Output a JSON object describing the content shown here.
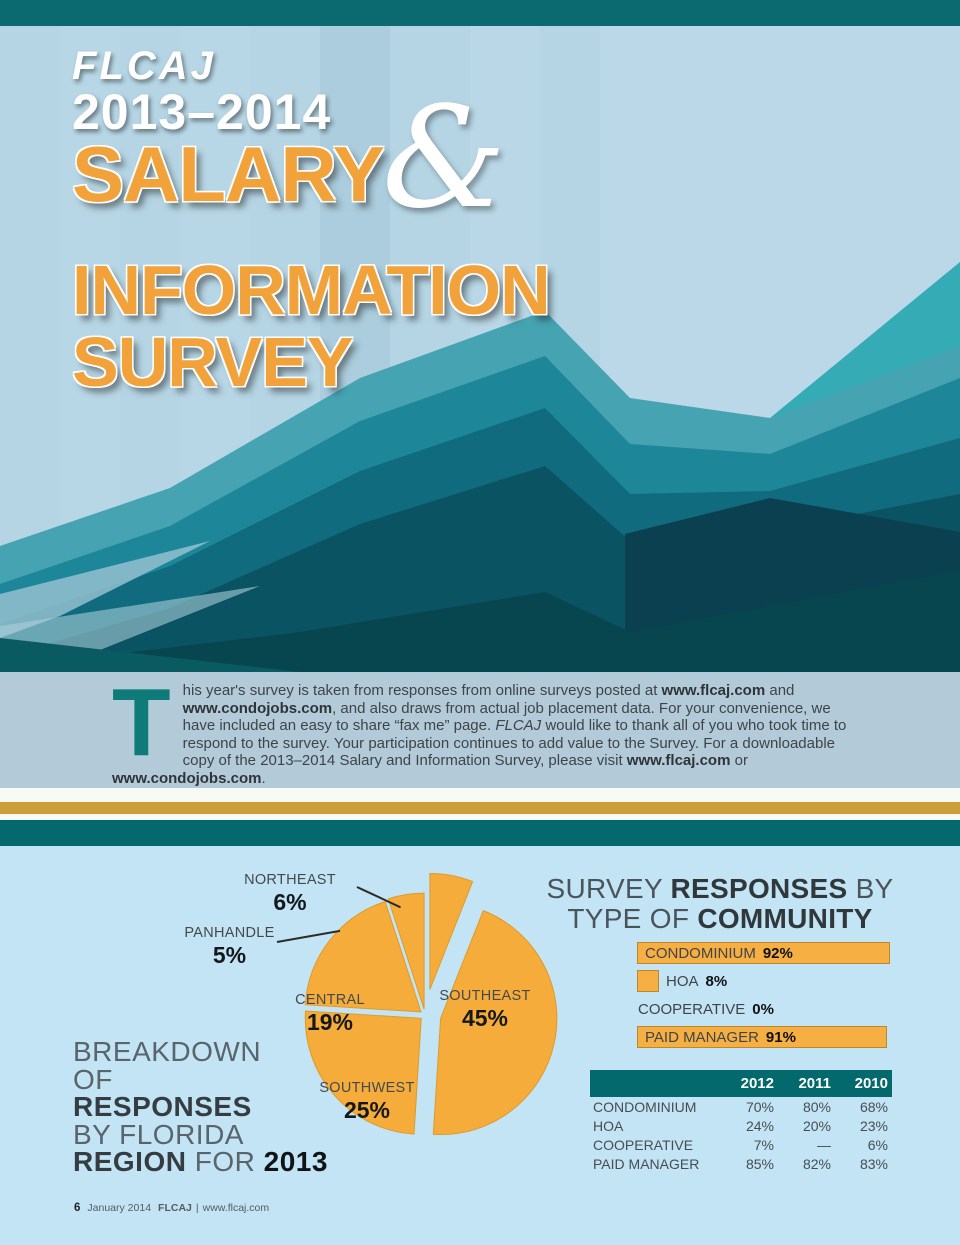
{
  "colors": {
    "accent_gold": "#F5AF43",
    "teal_dark": "#03696C",
    "hero_orange": "#F2A23A",
    "light_blue": "#C2E4F4"
  },
  "hero": {
    "brand": "FLCAJ",
    "years": "2013–2014",
    "word_salary": "SALARY",
    "ampersand": "&",
    "word_information": "INFORMATION",
    "word_survey": "SURVEY"
  },
  "intro": {
    "dropcap": "T",
    "segments": [
      {
        "t": "his year's survey is taken from responses from online surveys posted at ",
        "s": "n"
      },
      {
        "t": "www.flcaj.com",
        "s": "b"
      },
      {
        "t": " and ",
        "s": "n"
      },
      {
        "t": "www.condojobs.com",
        "s": "b"
      },
      {
        "t": ", and also draws from actual job placement data. For your convenience, we have included an easy to share “fax me” page. ",
        "s": "n"
      },
      {
        "t": "FLCAJ",
        "s": "i"
      },
      {
        "t": " would like to thank all of you who took time to respond to the survey. Your participation continues to add value to the Survey. For a downloadable copy of the 2013–2014 Salary and Information Survey, please visit ",
        "s": "n"
      },
      {
        "t": "www.flcaj.com",
        "s": "b"
      },
      {
        "t": " or ",
        "s": "n"
      },
      {
        "t": "www.condojobs.com",
        "s": "b"
      },
      {
        "t": ".",
        "s": "n"
      }
    ]
  },
  "region_heading": {
    "line1": "BREAKDOWN",
    "line2": "OF",
    "line3": "RESPONSES",
    "line4": "BY FLORIDA",
    "line5_bold": "REGION",
    "line5_light": " FOR ",
    "line5_year": "2013"
  },
  "survey_heading": {
    "l1a": "SURVEY ",
    "l1b": "RESPONSES",
    "l1c": " BY",
    "l2a": "TYPE OF ",
    "l2b": "COMMUNITY"
  },
  "footer": {
    "page_number": "6",
    "issue_date": "January 2014",
    "brand": "FLCAJ",
    "separator": "|",
    "website": "www.flcaj.com"
  },
  "chart_data": [
    {
      "type": "pie",
      "title": "Breakdown of Responses by Florida Region for 2013",
      "labels": [
        "NORTHEAST",
        "SOUTHEAST",
        "SOUTHWEST",
        "CENTRAL",
        "PANHANDLE"
      ],
      "values": [
        6,
        45,
        25,
        19,
        5
      ],
      "value_labels": [
        "6%",
        "45%",
        "25%",
        "19%",
        "5%"
      ],
      "slice_color": "#F5AC3B",
      "start_angle": 0,
      "clockwise": true
    },
    {
      "type": "bar",
      "title": "Survey Responses by Type of Community",
      "orientation": "horizontal",
      "categories": [
        "CONDOMINIUM",
        "HOA",
        "COOPERATIVE",
        "PAID MANAGER"
      ],
      "values": [
        92,
        8,
        0,
        91
      ],
      "value_labels": [
        "92%",
        "8%",
        "0%",
        "91%"
      ],
      "bar_color": "#F5AF43",
      "xlim": [
        0,
        100
      ]
    },
    {
      "type": "table",
      "columns": [
        "2012",
        "2011",
        "2010"
      ],
      "rows": [
        {
          "label": "CONDOMINIUM",
          "values": [
            "70%",
            "80%",
            "68%"
          ]
        },
        {
          "label": "HOA",
          "values": [
            "24%",
            "20%",
            "23%"
          ]
        },
        {
          "label": "COOPERATIVE",
          "values": [
            "7%",
            "—",
            "6%"
          ]
        },
        {
          "label": "PAID MANAGER",
          "values": [
            "85%",
            "82%",
            "83%"
          ]
        }
      ]
    }
  ]
}
